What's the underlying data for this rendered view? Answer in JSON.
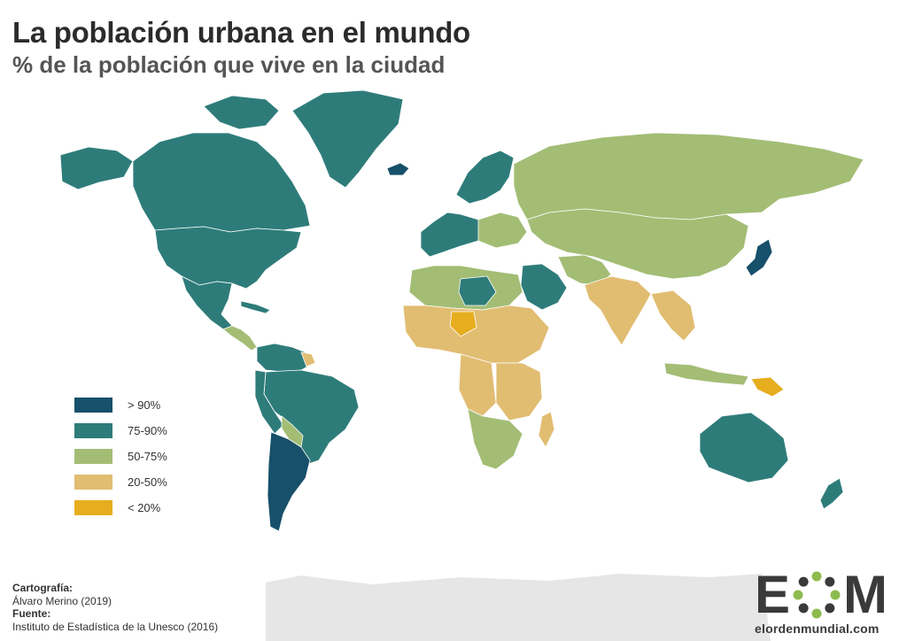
{
  "title": "La población urbana en el mundo",
  "subtitle": "% de la población que vive en la ciudad",
  "colors": {
    "gt90": "#17506a",
    "c75_90": "#2e7c7a",
    "c50_75": "#a3bd75",
    "c20_50": "#e1bd72",
    "lt20": "#e6ad1e",
    "no_data": "#d9d9d9",
    "antarctica": "#e6e6e6",
    "logo_green": "#8dbb4e",
    "text_dark": "#3a3a3a"
  },
  "legend": [
    {
      "label": "> 90%",
      "color": "#17506a"
    },
    {
      "label": "75-90%",
      "color": "#2e7c7a"
    },
    {
      "label": "50-75%",
      "color": "#a3bd75"
    },
    {
      "label": "20-50%",
      "color": "#e1bd72"
    },
    {
      "label": "< 20%",
      "color": "#e6ad1e"
    }
  ],
  "credits": {
    "cartography_label": "Cartografía:",
    "cartography_value": "Álvaro Merino (2019)",
    "source_label": "Fuente:",
    "source_value": "Instituto de Estadística de la Unesco (2016)"
  },
  "logo": {
    "letter_left": "E",
    "letter_right": "M",
    "url": "elordenmundial.com"
  }
}
